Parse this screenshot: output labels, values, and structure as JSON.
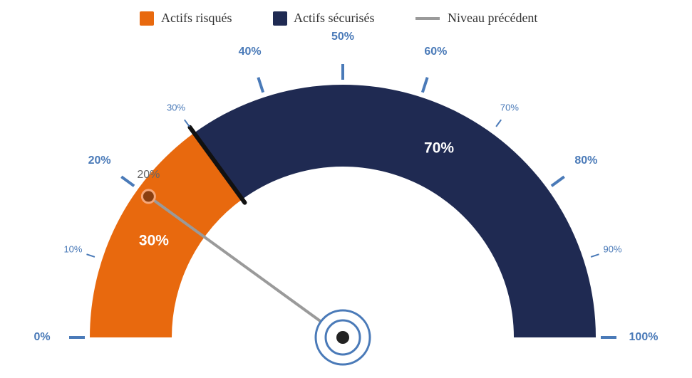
{
  "chart_data": {
    "type": "gauge",
    "xlim": [
      0,
      100
    ],
    "major_ticks": [
      {
        "value": 0,
        "label": "0%"
      },
      {
        "value": 20,
        "label": "20%"
      },
      {
        "value": 40,
        "label": "40%"
      },
      {
        "value": 50,
        "label": "50%"
      },
      {
        "value": 60,
        "label": "60%"
      },
      {
        "value": 80,
        "label": "80%"
      },
      {
        "value": 100,
        "label": "100%"
      }
    ],
    "minor_ticks": [
      {
        "value": 10,
        "label": "10%"
      },
      {
        "value": 30,
        "label": "30%"
      },
      {
        "value": 70,
        "label": "70%"
      },
      {
        "value": 90,
        "label": "90%"
      }
    ],
    "series": [
      {
        "name": "Actifs risqués",
        "color": "#e8690e",
        "values": [
          30
        ],
        "value_labels": [
          "30%"
        ]
      },
      {
        "name": "Actifs sécurisés",
        "color": "#1f2a52",
        "values": [
          70
        ],
        "value_labels": [
          "70%"
        ]
      }
    ],
    "previous": {
      "name": "Niveau précédent",
      "color": "#9a9a9a",
      "value": 20,
      "value_label": "20%"
    }
  }
}
